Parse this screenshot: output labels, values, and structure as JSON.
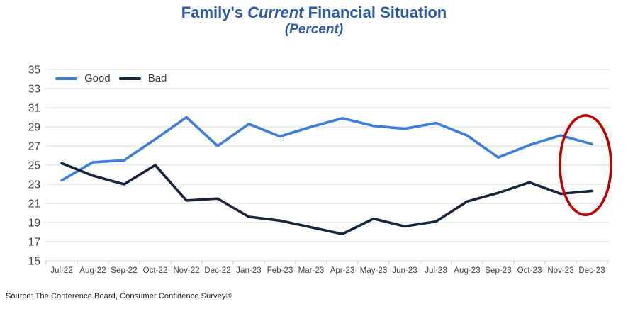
{
  "header": {
    "title_prefix": "Family's ",
    "title_emphasis": "Current",
    "title_suffix": " Financial Situation",
    "subtitle": "(Percent)",
    "title_color": "#2B5AA5"
  },
  "legend": {
    "items": [
      {
        "label": "Good",
        "color": "#3E7DD8"
      },
      {
        "label": "Bad",
        "color": "#17263E"
      }
    ]
  },
  "footer": {
    "source": "Source: The Conference Board, Consumer Confidence   Survey®"
  },
  "chart_data": {
    "type": "line",
    "title": "Family's Current Financial Situation",
    "subtitle": "(Percent)",
    "categories": [
      "Jul-22",
      "Aug-22",
      "Sep-22",
      "Oct-22",
      "Nov-22",
      "Dec-22",
      "Jan-23",
      "Feb-23",
      "Mar-23",
      "Apr-23",
      "May-23",
      "Jun-23",
      "Jul-23",
      "Aug-23",
      "Sep-23",
      "Oct-23",
      "Nov-23",
      "Dec-23"
    ],
    "series": [
      {
        "name": "Good",
        "color": "#3E7DD8",
        "values": [
          23.4,
          25.3,
          25.5,
          27.7,
          30.0,
          27.0,
          29.3,
          28.0,
          29.0,
          29.9,
          29.1,
          28.8,
          29.4,
          28.1,
          25.8,
          27.1,
          28.1,
          27.2
        ]
      },
      {
        "name": "Bad",
        "color": "#17263E",
        "values": [
          25.2,
          23.9,
          23.0,
          25.0,
          21.3,
          21.5,
          19.6,
          19.2,
          18.5,
          17.8,
          19.4,
          18.6,
          19.1,
          21.2,
          22.1,
          23.2,
          22.0,
          22.3
        ]
      }
    ],
    "ylim": [
      15,
      35
    ],
    "ytick_step": 2,
    "grid": "horizontal",
    "gridline_color": "#E2E2E2",
    "axis_label_color": "#3F3F3F",
    "legend_position": "top-left-inside",
    "annotation": {
      "shape": "ellipse",
      "color": "#C00000",
      "x_span": [
        "Nov-23",
        "Dec-23"
      ],
      "y_span": [
        19.8,
        30.2
      ]
    }
  }
}
